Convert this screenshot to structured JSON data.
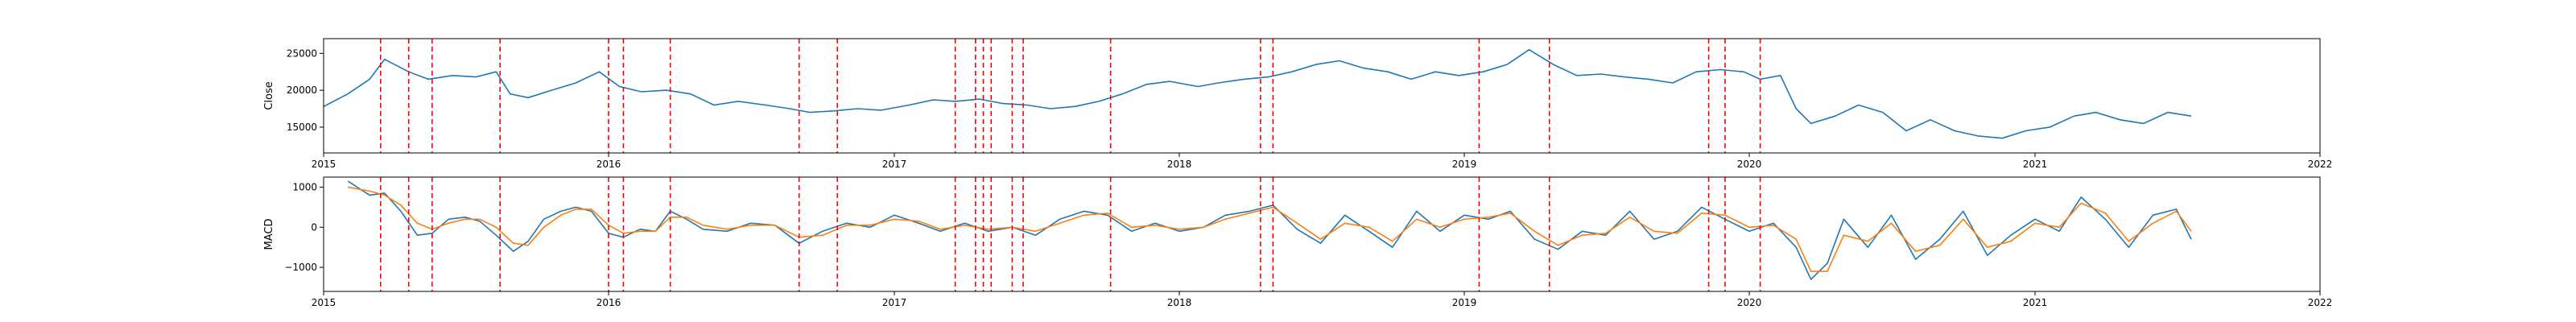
{
  "chart_data": [
    {
      "type": "line",
      "title": "",
      "xlabel": "",
      "ylabel": "Close",
      "xlim": [
        "2015-01-01",
        "2022-01-01"
      ],
      "ylim": [
        11500,
        27000
      ],
      "x_tick_labels": [
        "2015",
        "2016",
        "2017",
        "2018",
        "2019",
        "2020",
        "2021",
        "2022"
      ],
      "y_ticks": [
        15000,
        20000,
        25000
      ],
      "y_tick_labels": [
        "15000",
        "20000",
        "25000"
      ],
      "grid": false,
      "legend": "none",
      "colors": {
        "line": "#1f77b4",
        "signal_lines": "#ff0000"
      },
      "series": [
        {
          "x": [
            "2015-01-01",
            "2015-02-01",
            "2015-03-01",
            "2015-03-20",
            "2015-04-20",
            "2015-05-15",
            "2015-06-15",
            "2015-07-15",
            "2015-08-10",
            "2015-08-28",
            "2015-09-20",
            "2015-10-20",
            "2015-11-20",
            "2015-12-20",
            "2016-01-15",
            "2016-02-12",
            "2016-03-15",
            "2016-04-15",
            "2016-05-15",
            "2016-06-15",
            "2016-07-20",
            "2016-08-20",
            "2016-09-15",
            "2016-10-15",
            "2016-11-15",
            "2016-12-15",
            "2017-01-20",
            "2017-02-20",
            "2017-03-20",
            "2017-04-20",
            "2017-05-20",
            "2017-06-20",
            "2017-07-20",
            "2017-08-20",
            "2017-09-20",
            "2017-10-20",
            "2017-11-20",
            "2017-12-20",
            "2018-01-25",
            "2018-02-20",
            "2018-03-25",
            "2018-04-25",
            "2018-05-25",
            "2018-06-25",
            "2018-07-25",
            "2018-08-25",
            "2018-09-25",
            "2018-10-25",
            "2018-11-25",
            "2018-12-25",
            "2019-01-25",
            "2019-02-25",
            "2019-03-25",
            "2019-04-25",
            "2019-05-25",
            "2019-06-25",
            "2019-07-25",
            "2019-08-25",
            "2019-09-25",
            "2019-10-25",
            "2019-11-25",
            "2019-12-25",
            "2020-01-15",
            "2020-02-10",
            "2020-03-01",
            "2020-03-20",
            "2020-04-20",
            "2020-05-20",
            "2020-06-20",
            "2020-07-20",
            "2020-08-20",
            "2020-09-20",
            "2020-10-20",
            "2020-11-20",
            "2020-12-20",
            "2021-01-20",
            "2021-02-20",
            "2021-03-20",
            "2021-04-20",
            "2021-05-20",
            "2021-06-20",
            "2021-07-20"
          ],
          "values": [
            17800,
            19500,
            21500,
            24200,
            22500,
            21500,
            22000,
            21800,
            22500,
            19500,
            19000,
            20000,
            21000,
            22500,
            20500,
            19800,
            20000,
            19500,
            18000,
            18500,
            18000,
            17500,
            17000,
            17200,
            17500,
            17300,
            18000,
            18700,
            18500,
            18800,
            18200,
            18000,
            17500,
            17800,
            18500,
            19500,
            20800,
            21200,
            20500,
            21000,
            21500,
            21800,
            22500,
            23500,
            24000,
            23000,
            22500,
            21500,
            22500,
            22000,
            22500,
            23500,
            25500,
            23500,
            22000,
            22200,
            21800,
            21500,
            21000,
            22500,
            22800,
            22500,
            21500,
            22000,
            17500,
            15500,
            16500,
            18000,
            17000,
            14500,
            16000,
            14500,
            13800,
            13500,
            14500,
            15000,
            16500,
            17000,
            16000,
            15500,
            17000,
            16500
          ]
        }
      ],
      "signal_dates": [
        "2015-03-15",
        "2015-04-20",
        "2015-05-20",
        "2015-08-15",
        "2016-01-01",
        "2016-01-20",
        "2016-03-20",
        "2016-09-01",
        "2016-10-20",
        "2017-03-20",
        "2017-04-15",
        "2017-04-25",
        "2017-05-05",
        "2017-06-01",
        "2017-06-15",
        "2017-10-05",
        "2018-04-15",
        "2018-05-01",
        "2019-01-20",
        "2019-04-20",
        "2019-11-10",
        "2019-12-01",
        "2020-01-15"
      ]
    },
    {
      "type": "line",
      "title": "",
      "xlabel": "",
      "ylabel": "MACD",
      "xlim": [
        "2015-01-01",
        "2022-01-01"
      ],
      "ylim": [
        -1600,
        1250
      ],
      "x_tick_labels": [
        "2015",
        "2016",
        "2017",
        "2018",
        "2019",
        "2020",
        "2021",
        "2022"
      ],
      "y_ticks": [
        -1000,
        0,
        1000
      ],
      "y_tick_labels": [
        "−1000",
        "0",
        "1000"
      ],
      "grid": false,
      "legend": "none",
      "colors": {
        "macd": "#1f77b4",
        "signal": "#ff7f0e",
        "signal_lines": "#ff0000"
      },
      "series": [
        {
          "x": [
            "2015-02-01",
            "2015-03-01",
            "2015-03-20",
            "2015-04-10",
            "2015-05-01",
            "2015-05-20",
            "2015-06-10",
            "2015-07-01",
            "2015-07-20",
            "2015-08-10",
            "2015-09-01",
            "2015-09-20",
            "2015-10-10",
            "2015-11-01",
            "2015-11-20",
            "2015-12-10",
            "2016-01-01",
            "2016-01-20",
            "2016-02-10",
            "2016-03-01",
            "2016-03-20",
            "2016-04-10",
            "2016-05-01",
            "2016-06-01",
            "2016-07-01",
            "2016-08-01",
            "2016-09-01",
            "2016-10-01",
            "2016-11-01",
            "2016-12-01",
            "2017-01-01",
            "2017-02-01",
            "2017-03-01",
            "2017-04-01",
            "2017-05-01",
            "2017-06-01",
            "2017-07-01",
            "2017-08-01",
            "2017-09-01",
            "2017-10-01",
            "2017-11-01",
            "2017-12-01",
            "2018-01-01",
            "2018-02-01",
            "2018-03-01",
            "2018-04-01",
            "2018-05-01",
            "2018-06-01",
            "2018-07-01",
            "2018-08-01",
            "2018-09-01",
            "2018-10-01",
            "2018-11-01",
            "2018-12-01",
            "2019-01-01",
            "2019-02-01",
            "2019-03-01",
            "2019-04-01",
            "2019-05-01",
            "2019-06-01",
            "2019-07-01",
            "2019-08-01",
            "2019-09-01",
            "2019-10-01",
            "2019-11-01",
            "2019-12-01",
            "2020-01-01",
            "2020-02-01",
            "2020-03-01",
            "2020-03-20",
            "2020-04-10",
            "2020-05-01",
            "2020-06-01",
            "2020-07-01",
            "2020-08-01",
            "2020-09-01",
            "2020-10-01",
            "2020-11-01",
            "2020-12-01",
            "2021-01-01",
            "2021-02-01",
            "2021-03-01",
            "2021-04-01",
            "2021-05-01",
            "2021-06-01",
            "2021-07-01",
            "2021-07-20"
          ],
          "macd": [
            1150,
            800,
            850,
            400,
            -200,
            -150,
            200,
            250,
            150,
            -200,
            -600,
            -350,
            200,
            400,
            500,
            400,
            -150,
            -250,
            -50,
            -100,
            400,
            200,
            -50,
            -100,
            100,
            50,
            -400,
            -100,
            100,
            0,
            300,
            100,
            -100,
            100,
            -100,
            0,
            -200,
            200,
            400,
            300,
            -100,
            100,
            -100,
            0,
            300,
            400,
            550,
            -50,
            -400,
            300,
            -100,
            -500,
            400,
            -100,
            300,
            200,
            400,
            -300,
            -550,
            -100,
            -200,
            400,
            -300,
            -100,
            500,
            200,
            -100,
            100,
            -500,
            -1300,
            -900,
            200,
            -500,
            300,
            -800,
            -300,
            400,
            -700,
            -200,
            200,
            -100,
            750,
            200,
            -500,
            300,
            450,
            -300
          ],
          "signal": [
            1000,
            900,
            800,
            550,
            100,
            -50,
            100,
            200,
            200,
            0,
            -400,
            -450,
            0,
            300,
            450,
            450,
            50,
            -150,
            -100,
            -100,
            250,
            250,
            50,
            -50,
            50,
            50,
            -250,
            -200,
            50,
            50,
            200,
            150,
            -50,
            50,
            -50,
            0,
            -100,
            100,
            300,
            350,
            0,
            50,
            -50,
            0,
            200,
            350,
            500,
            100,
            -300,
            100,
            0,
            -350,
            200,
            0,
            200,
            250,
            350,
            -100,
            -450,
            -200,
            -150,
            250,
            -100,
            -150,
            350,
            300,
            0,
            50,
            -300,
            -1100,
            -1100,
            -200,
            -350,
            100,
            -600,
            -450,
            200,
            -500,
            -350,
            100,
            0,
            600,
            350,
            -350,
            100,
            400,
            -100
          ]
        }
      ],
      "signal_dates": [
        "2015-03-15",
        "2015-04-20",
        "2015-05-20",
        "2015-08-15",
        "2016-01-01",
        "2016-01-20",
        "2016-03-20",
        "2016-09-01",
        "2016-10-20",
        "2017-03-20",
        "2017-04-15",
        "2017-04-25",
        "2017-05-05",
        "2017-06-01",
        "2017-06-15",
        "2017-10-05",
        "2018-04-15",
        "2018-05-01",
        "2019-01-20",
        "2019-04-20",
        "2019-11-10",
        "2019-12-01",
        "2020-01-15"
      ]
    }
  ]
}
